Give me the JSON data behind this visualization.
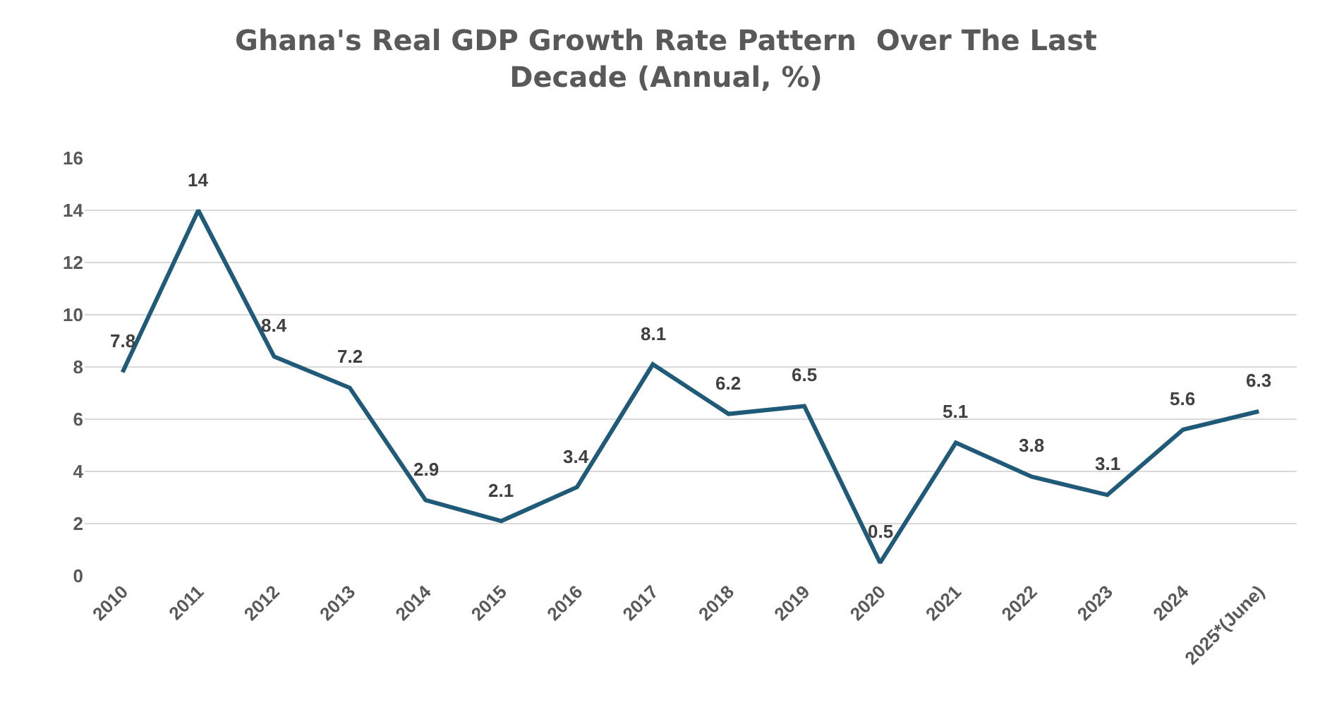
{
  "chart_data": {
    "type": "line",
    "title": "Ghana's Real GDP Growth Rate Pattern  Over The Last\nDecade (Annual, %)",
    "categories": [
      "2010",
      "2011",
      "2012",
      "2013",
      "2014",
      "2015",
      "2016",
      "2017",
      "2018",
      "2019",
      "2020",
      "2021",
      "2022",
      "2023",
      "2024",
      "2025*(June)"
    ],
    "series": [
      {
        "color": "#1f5b78",
        "values": [
          7.8,
          14,
          8.4,
          7.2,
          2.9,
          2.1,
          3.4,
          8.1,
          6.2,
          6.5,
          0.5,
          5.1,
          3.8,
          3.1,
          5.6,
          6.3
        ]
      }
    ],
    "ylim": [
      0,
      16
    ],
    "yticks": [
      0,
      2,
      4,
      6,
      8,
      10,
      12,
      14,
      16
    ],
    "grid": "y",
    "marker": "none",
    "line_style": "solid",
    "data_labels": true
  }
}
